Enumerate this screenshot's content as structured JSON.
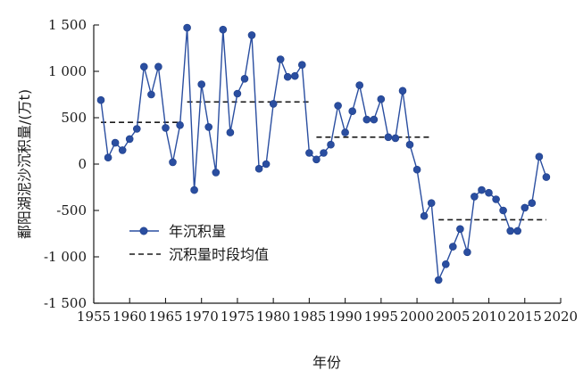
{
  "chart_data": {
    "type": "line",
    "xlabel": "年份",
    "ylabel": "鄱阳湖泥沙沉积量/(万t)",
    "xlim": [
      1955,
      2020
    ],
    "ylim": [
      -1500,
      1500
    ],
    "xticks": [
      1955,
      1960,
      1965,
      1970,
      1975,
      1980,
      1985,
      1990,
      1995,
      2000,
      2005,
      2010,
      2015,
      2020
    ],
    "xtick_labels": [
      "1955",
      "1960",
      "1965",
      "1970",
      "1975",
      "1980",
      "1985",
      "1990",
      "1995",
      "2000",
      "2005",
      "2010",
      "2015",
      "2020"
    ],
    "yticks": [
      -1500,
      -1000,
      -500,
      0,
      500,
      1000,
      1500
    ],
    "ytick_labels": [
      "-1 500",
      "-1 000",
      "-500",
      "0",
      "500",
      "1 000",
      "1 500"
    ],
    "grid": false,
    "legend_position": "lower-left",
    "series_color": "#2a4ea0",
    "series": [
      {
        "name": "年沉积量",
        "x": [
          1956,
          1957,
          1958,
          1959,
          1960,
          1961,
          1962,
          1963,
          1964,
          1965,
          1966,
          1967,
          1968,
          1969,
          1970,
          1971,
          1972,
          1973,
          1974,
          1975,
          1976,
          1977,
          1978,
          1979,
          1980,
          1981,
          1982,
          1983,
          1984,
          1985,
          1986,
          1987,
          1988,
          1989,
          1990,
          1991,
          1992,
          1993,
          1994,
          1995,
          1996,
          1997,
          1998,
          1999,
          2000,
          2001,
          2002,
          2003,
          2004,
          2005,
          2006,
          2007,
          2008,
          2009,
          2010,
          2011,
          2012,
          2013,
          2014,
          2015,
          2016,
          2017,
          2018
        ],
        "values": [
          690,
          70,
          230,
          150,
          270,
          380,
          1050,
          750,
          1050,
          390,
          20,
          420,
          1470,
          -280,
          860,
          400,
          -90,
          1450,
          340,
          760,
          920,
          1390,
          -50,
          0,
          650,
          1130,
          940,
          950,
          1070,
          120,
          50,
          120,
          210,
          630,
          340,
          570,
          850,
          480,
          480,
          700,
          290,
          280,
          790,
          210,
          -60,
          -560,
          -420,
          -1250,
          -1080,
          -890,
          -700,
          -950,
          -350,
          -280,
          -310,
          -380,
          -500,
          -720,
          -720,
          -470,
          -420,
          80,
          -140
        ]
      },
      {
        "name": "沉积量时段均值",
        "segments": [
          {
            "x": [
              1956,
              1967
            ],
            "y": 450
          },
          {
            "x": [
              1968,
              1985
            ],
            "y": 670
          },
          {
            "x": [
              1986,
              2002
            ],
            "y": 290
          },
          {
            "x": [
              2003,
              2018
            ],
            "y": -600
          }
        ]
      }
    ]
  }
}
